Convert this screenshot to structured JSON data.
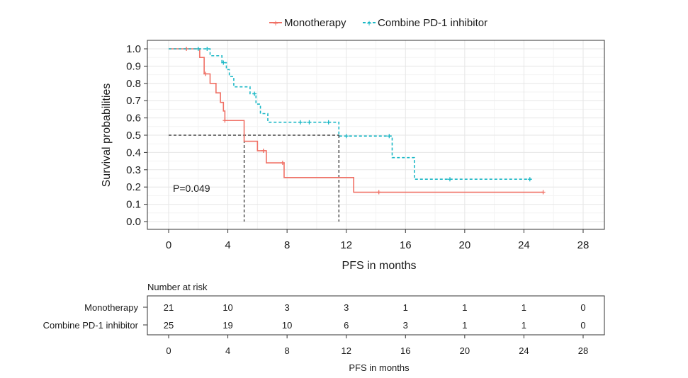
{
  "chart_data": {
    "type": "line",
    "subtype": "kaplan-meier",
    "xlabel": "PFS in months",
    "ylabel": "Survival probabilities",
    "xlim": [
      0,
      28
    ],
    "ylim": [
      0,
      1
    ],
    "x_ticks": [
      0,
      4,
      8,
      12,
      16,
      20,
      24,
      28
    ],
    "y_ticks": [
      0.0,
      0.1,
      0.2,
      0.3,
      0.4,
      0.5,
      0.6,
      0.7,
      0.8,
      0.9,
      1.0
    ],
    "y_tick_labels": [
      "0.0",
      "0.1",
      "0.2",
      "0.3",
      "0.4",
      "0.5",
      "0.6",
      "0.7",
      "0.8",
      "0.9",
      "1.0"
    ],
    "x_tick_labels": [
      "0",
      "4",
      "8",
      "12",
      "16",
      "20",
      "24",
      "28"
    ],
    "grid": true,
    "legend_position": "top",
    "annotation": "P=0.049",
    "median_lines": {
      "y": 0.5,
      "x": [
        5.1,
        11.5
      ]
    },
    "series": [
      {
        "name": "Monotherapy",
        "color": "#f07065",
        "dash": "solid",
        "steps": [
          [
            0,
            1.0
          ],
          [
            2.1,
            0.95
          ],
          [
            2.4,
            0.855
          ],
          [
            2.8,
            0.8
          ],
          [
            3.2,
            0.745
          ],
          [
            3.5,
            0.69
          ],
          [
            3.7,
            0.64
          ],
          [
            3.8,
            0.585
          ],
          [
            5.1,
            0.465
          ],
          [
            6.0,
            0.41
          ],
          [
            6.6,
            0.34
          ],
          [
            7.8,
            0.255
          ],
          [
            12.5,
            0.17
          ],
          [
            25.3,
            0.17
          ]
        ],
        "censors": [
          [
            1.2,
            1.0
          ],
          [
            2.5,
            0.855
          ],
          [
            3.8,
            0.585
          ],
          [
            6.4,
            0.41
          ],
          [
            7.7,
            0.34
          ],
          [
            14.2,
            0.17
          ],
          [
            25.3,
            0.17
          ]
        ]
      },
      {
        "name": "Combine PD-1 inhibitor",
        "color": "#1bb8c6",
        "dash": "dashed",
        "steps": [
          [
            0,
            1.0
          ],
          [
            2.8,
            0.96
          ],
          [
            3.6,
            0.92
          ],
          [
            3.9,
            0.88
          ],
          [
            4.1,
            0.84
          ],
          [
            4.4,
            0.78
          ],
          [
            5.5,
            0.74
          ],
          [
            5.9,
            0.68
          ],
          [
            6.2,
            0.625
          ],
          [
            6.7,
            0.575
          ],
          [
            11.5,
            0.495
          ],
          [
            15.1,
            0.37
          ],
          [
            16.6,
            0.245
          ],
          [
            24.5,
            0.245
          ]
        ],
        "censors": [
          [
            2.0,
            1.0
          ],
          [
            2.6,
            1.0
          ],
          [
            3.7,
            0.92
          ],
          [
            5.8,
            0.74
          ],
          [
            8.9,
            0.575
          ],
          [
            9.5,
            0.575
          ],
          [
            10.8,
            0.575
          ],
          [
            12.0,
            0.495
          ],
          [
            14.9,
            0.495
          ],
          [
            19.0,
            0.245
          ],
          [
            24.4,
            0.245
          ]
        ]
      }
    ],
    "risk_table": {
      "title": "Number at risk",
      "xlabel": "PFS in months",
      "times": [
        0,
        4,
        8,
        12,
        16,
        20,
        24,
        28
      ],
      "time_labels": [
        "0",
        "4",
        "8",
        "12",
        "16",
        "20",
        "24",
        "28"
      ],
      "rows": [
        {
          "name": "Monotherapy",
          "counts": [
            "21",
            "10",
            "3",
            "3",
            "1",
            "1",
            "1",
            "0"
          ]
        },
        {
          "name": "Combine PD-1 inhibitor",
          "counts": [
            "25",
            "19",
            "10",
            "6",
            "3",
            "1",
            "1",
            "0"
          ]
        }
      ]
    }
  }
}
